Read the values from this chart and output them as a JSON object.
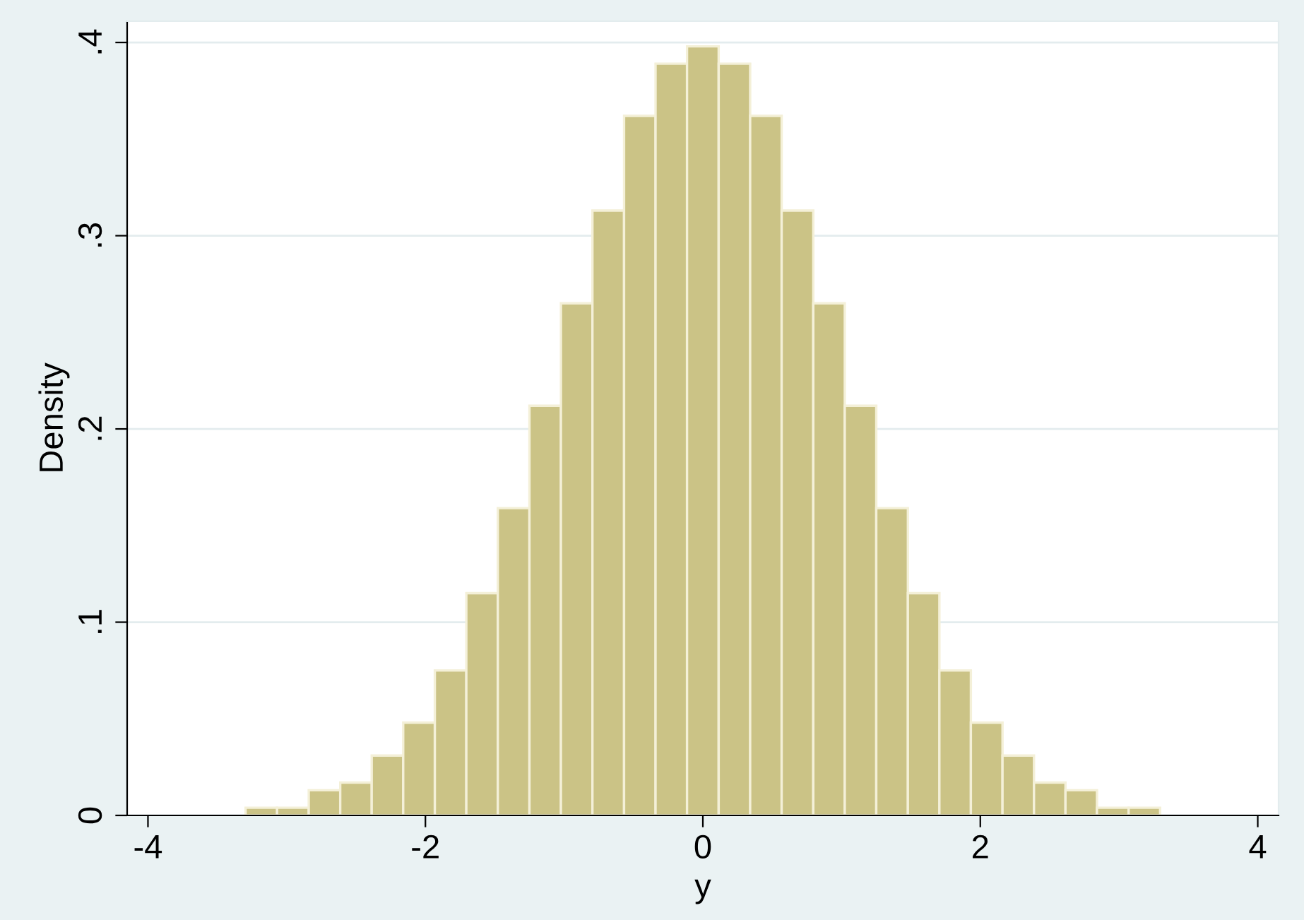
{
  "chart_data": {
    "type": "histogram",
    "xlabel": "y",
    "ylabel": "Density",
    "bins": [
      -3.296,
      -3.069,
      -2.841,
      -2.614,
      -2.387,
      -2.16,
      -1.932,
      -1.705,
      -1.478,
      -1.25,
      -1.023,
      -0.796,
      -0.568,
      -0.341,
      -0.114,
      0.114,
      0.341,
      0.568,
      0.796,
      1.023,
      1.25,
      1.478,
      1.705,
      1.932,
      2.16,
      2.387,
      2.614,
      2.841,
      3.069,
      3.296
    ],
    "values": [
      0.004,
      0.004,
      0.013,
      0.017,
      0.031,
      0.048,
      0.075,
      0.115,
      0.159,
      0.212,
      0.265,
      0.313,
      0.362,
      0.389,
      0.398,
      0.389,
      0.362,
      0.313,
      0.265,
      0.212,
      0.159,
      0.115,
      0.075,
      0.048,
      0.031,
      0.017,
      0.013,
      0.004,
      0.004
    ],
    "color": "#cbc386",
    "xlim": [
      -4.15,
      4.15
    ],
    "ylim": [
      0,
      0.411
    ],
    "xticks": [
      -4,
      -2,
      0,
      2,
      4
    ],
    "yticks": [
      0,
      {
        "value": 0.1,
        "label": ".1"
      },
      {
        "value": 0.2,
        "label": ".2"
      },
      {
        "value": 0.3,
        "label": ".3"
      },
      {
        "value": 0.4,
        "label": ".4"
      }
    ],
    "grid": "y"
  }
}
